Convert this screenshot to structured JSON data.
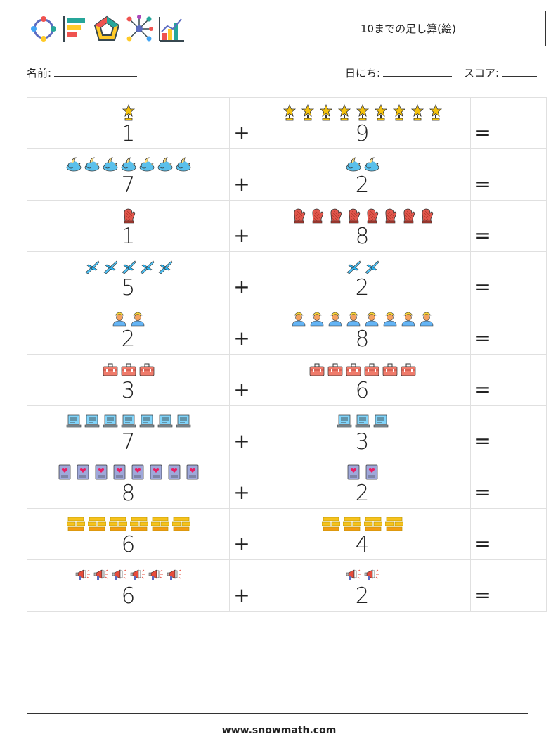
{
  "header": {
    "title": "10までの足し算(絵)",
    "logo_icons": [
      "people-cycle-icon",
      "bar-list-icon",
      "pentagon-icon",
      "network-icon",
      "chart-icon"
    ]
  },
  "info": {
    "name_label": "名前:",
    "date_label": "日にち:",
    "score_label": "スコア:"
  },
  "symbols": {
    "plus": "+",
    "equals": "="
  },
  "problems": [
    {
      "a": "1",
      "b": "9",
      "icon": "trophy-icon",
      "color": "#f4c20d"
    },
    {
      "a": "7",
      "b": "2",
      "icon": "cloud-moon-icon",
      "color": "#5bc0eb"
    },
    {
      "a": "1",
      "b": "8",
      "icon": "oven-mitt-icon",
      "color": "#e2574c"
    },
    {
      "a": "5",
      "b": "2",
      "icon": "airplane-icon",
      "color": "#4fc3f7"
    },
    {
      "a": "2",
      "b": "8",
      "icon": "worker-icon",
      "color": "#f4a261"
    },
    {
      "a": "3",
      "b": "6",
      "icon": "toolbox-icon",
      "color": "#ef7b6b"
    },
    {
      "a": "7",
      "b": "3",
      "icon": "laptop-list-icon",
      "color": "#81d4fa"
    },
    {
      "a": "8",
      "b": "2",
      "icon": "heart-book-icon",
      "color": "#9fa8da"
    },
    {
      "a": "6",
      "b": "4",
      "icon": "gold-bars-icon",
      "color": "#f6c21c"
    },
    {
      "a": "6",
      "b": "2",
      "icon": "megaphone-icon",
      "color": "#e74c3c"
    }
  ],
  "footer": {
    "url": "www.snowmath.com"
  }
}
